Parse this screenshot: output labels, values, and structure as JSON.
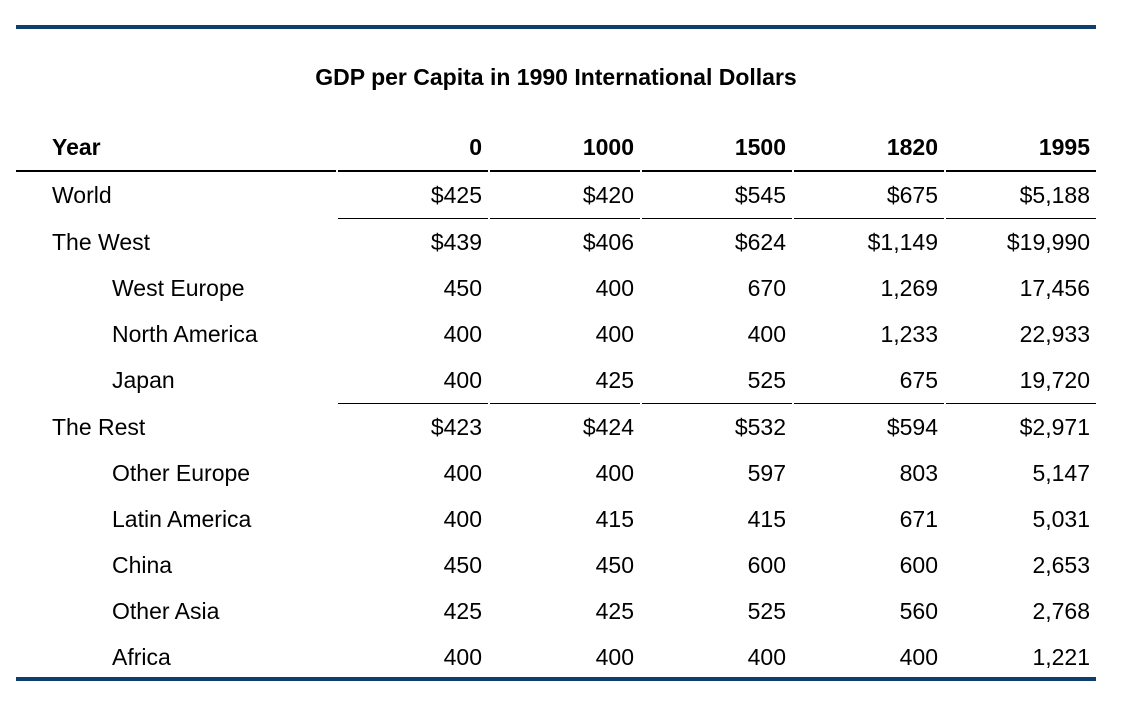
{
  "colors": {
    "accent_rule": "#0f3d6e"
  },
  "title": "GDP per Capita in 1990 International Dollars",
  "columns": [
    "Year",
    "0",
    "1000",
    "1500",
    "1820",
    "1995"
  ],
  "rows": [
    {
      "label": "World",
      "indent": false,
      "values": [
        "$425",
        "$420",
        "$545",
        "$675",
        "$5,188"
      ]
    },
    {
      "label": "The West",
      "indent": false,
      "values": [
        "$439",
        "$406",
        "$624",
        "$1,149",
        "$19,990"
      ]
    },
    {
      "label": "West Europe",
      "indent": true,
      "values": [
        "450",
        "400",
        "670",
        "1,269",
        "17,456"
      ]
    },
    {
      "label": "North America",
      "indent": true,
      "values": [
        "400",
        "400",
        "400",
        "1,233",
        "22,933"
      ]
    },
    {
      "label": "Japan",
      "indent": true,
      "values": [
        "400",
        "425",
        "525",
        "675",
        "19,720"
      ]
    },
    {
      "label": "The Rest",
      "indent": false,
      "values": [
        "$423",
        "$424",
        "$532",
        "$594",
        "$2,971"
      ]
    },
    {
      "label": "Other Europe",
      "indent": true,
      "values": [
        "400",
        "400",
        "597",
        "803",
        "5,147"
      ]
    },
    {
      "label": "Latin America",
      "indent": true,
      "values": [
        "400",
        "415",
        "415",
        "671",
        "5,031"
      ]
    },
    {
      "label": "China",
      "indent": true,
      "values": [
        "450",
        "450",
        "600",
        "600",
        "2,653"
      ]
    },
    {
      "label": "Other Asia",
      "indent": true,
      "values": [
        "425",
        "425",
        "525",
        "560",
        "2,768"
      ]
    },
    {
      "label": "Africa",
      "indent": true,
      "values": [
        "400",
        "400",
        "400",
        "400",
        "1,221"
      ]
    }
  ]
}
